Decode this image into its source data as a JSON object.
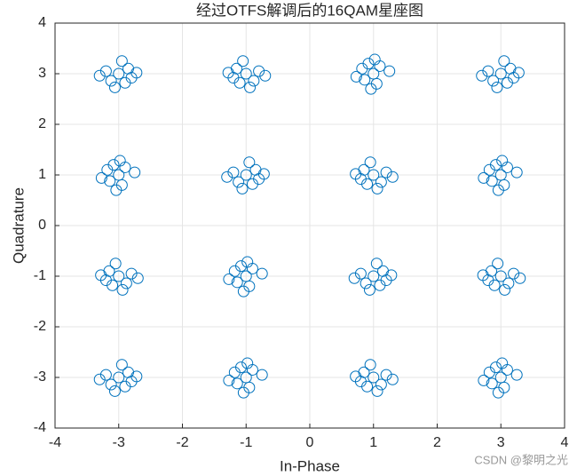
{
  "chart_data": {
    "type": "scatter",
    "title": "经过OTFS解调后的16QAM星座图",
    "xlabel": "In-Phase",
    "ylabel": "Quadrature",
    "watermark": "CSDN @黎明之光",
    "color": "#0072bd",
    "grid": true,
    "xlim": [
      -4,
      4
    ],
    "ylim": [
      -4,
      4
    ],
    "xticks": [
      -4,
      -3,
      -2,
      -1,
      0,
      1,
      2,
      3,
      4
    ],
    "yticks": [
      -4,
      -3,
      -2,
      -1,
      0,
      1,
      2,
      3,
      4
    ],
    "x": [
      -3,
      -2.85,
      -3.2,
      -2.9,
      -3.12,
      -2.72,
      -3.3,
      -2.95,
      -3.06,
      -2.8,
      -1,
      -1.15,
      -0.8,
      -1.1,
      -0.88,
      -1.28,
      -0.7,
      -1.05,
      -0.94,
      -1.2,
      1,
      1.1,
      1.05,
      0.82,
      0.86,
      1.02,
      0.96,
      1.25,
      0.73,
      0.92,
      3,
      3.15,
      2.8,
      3.1,
      2.88,
      3.28,
      2.7,
      3.05,
      2.94,
      3.2,
      -3,
      -2.9,
      -2.95,
      -3.18,
      -3.14,
      -2.98,
      -3.04,
      -2.75,
      -3.27,
      -3.08,
      -1,
      -0.85,
      -1.2,
      -0.9,
      -1.12,
      -0.72,
      -1.3,
      -0.95,
      -1.06,
      -0.8,
      1,
      0.85,
      1.2,
      0.9,
      1.12,
      0.72,
      1.3,
      0.95,
      1.06,
      0.8,
      3,
      3.1,
      3.05,
      2.82,
      2.86,
      3.02,
      2.96,
      3.25,
      2.73,
      2.92,
      -3,
      -3.15,
      -2.8,
      -3.1,
      -2.88,
      -3.28,
      -2.7,
      -3.05,
      -2.94,
      -3.2,
      -1,
      -0.9,
      -0.95,
      -1.18,
      -1.14,
      -0.98,
      -1.04,
      -0.75,
      -1.27,
      -1.08,
      1,
      1.15,
      0.8,
      1.1,
      0.88,
      1.28,
      0.7,
      1.05,
      0.94,
      1.2,
      3,
      2.85,
      3.2,
      2.9,
      3.12,
      2.72,
      3.3,
      2.95,
      3.06,
      2.8,
      -3,
      -2.85,
      -3.2,
      -2.9,
      -3.12,
      -2.72,
      -3.3,
      -2.95,
      -3.06,
      -2.8,
      -1,
      -0.9,
      -0.95,
      -1.18,
      -1.14,
      -0.98,
      -1.04,
      -0.75,
      -1.27,
      -1.08,
      1,
      0.85,
      1.2,
      0.9,
      1.12,
      0.72,
      1.3,
      0.95,
      1.06,
      0.8,
      3,
      3.1,
      3.05,
      2.82,
      2.86,
      3.02,
      2.96,
      3.25,
      2.73,
      2.92
    ],
    "values": [
      3,
      3.1,
      3.05,
      2.82,
      2.86,
      3.02,
      2.96,
      3.25,
      2.73,
      2.92,
      3,
      3.1,
      3.05,
      2.82,
      2.86,
      3.02,
      2.96,
      3.25,
      2.73,
      2.92,
      3,
      3.15,
      2.8,
      3.1,
      2.88,
      3.28,
      2.7,
      3.05,
      2.94,
      3.2,
      3,
      3.1,
      3.05,
      2.82,
      2.86,
      3.02,
      2.96,
      3.25,
      2.73,
      2.92,
      1,
      1.15,
      0.8,
      1.1,
      0.88,
      1.28,
      0.7,
      1.05,
      0.94,
      1.2,
      1,
      1.1,
      1.05,
      0.82,
      0.86,
      1.02,
      0.96,
      1.25,
      0.73,
      0.92,
      1,
      1.1,
      1.05,
      0.82,
      0.86,
      1.02,
      0.96,
      1.25,
      0.73,
      0.92,
      1,
      1.15,
      0.8,
      1.1,
      0.88,
      1.28,
      0.7,
      1.05,
      0.94,
      1.2,
      -1,
      -0.9,
      -0.95,
      -1.18,
      -1.14,
      -0.98,
      -1.04,
      -0.75,
      -1.27,
      -1.08,
      -1,
      -0.85,
      -1.2,
      -0.9,
      -1.12,
      -0.72,
      -1.3,
      -0.95,
      -1.06,
      -0.8,
      -1,
      -0.9,
      -0.95,
      -1.18,
      -1.14,
      -0.98,
      -1.04,
      -0.75,
      -1.27,
      -1.08,
      -1,
      -0.9,
      -0.95,
      -1.18,
      -1.14,
      -0.98,
      -1.04,
      -0.75,
      -1.27,
      -1.08,
      -3,
      -2.9,
      -2.95,
      -3.18,
      -3.14,
      -2.98,
      -3.04,
      -2.75,
      -3.27,
      -3.08,
      -3,
      -2.85,
      -3.2,
      -2.9,
      -3.12,
      -2.72,
      -3.3,
      -2.95,
      -3.06,
      -2.8,
      -3,
      -2.9,
      -2.95,
      -3.18,
      -3.14,
      -2.98,
      -3.04,
      -2.75,
      -3.27,
      -3.08,
      -3,
      -2.85,
      -3.2,
      -2.9,
      -3.12,
      -2.72,
      -3.3,
      -2.95,
      -3.06,
      -2.8
    ]
  }
}
